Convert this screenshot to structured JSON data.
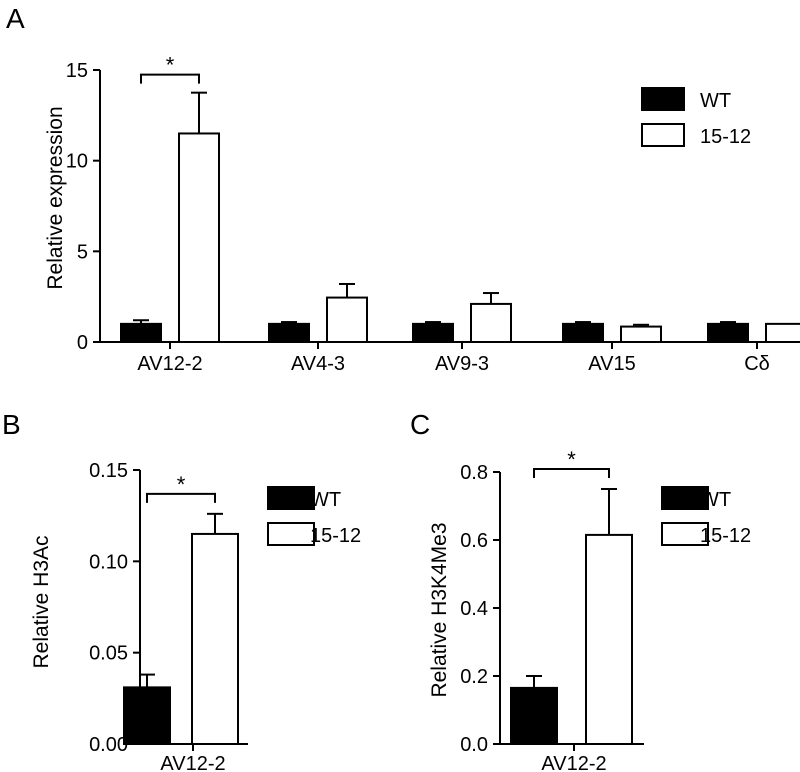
{
  "chart_data": [
    {
      "panel": "A",
      "type": "bar",
      "ylabel": "Relative expression",
      "ylim": [
        0,
        15
      ],
      "yticks": [
        "0",
        "5",
        "10",
        "15"
      ],
      "categories": [
        "AV12-2",
        "AV4-3",
        "AV9-3",
        "AV15",
        "Cδ"
      ],
      "series": [
        {
          "name": "WT",
          "color": "#000000",
          "values": [
            1.0,
            1.0,
            1.0,
            1.0,
            1.0
          ],
          "errors": [
            0.2,
            0.1,
            0.1,
            0.1,
            0.1
          ]
        },
        {
          "name": "15-12",
          "color": "#ffffff",
          "values": [
            11.5,
            2.45,
            2.1,
            0.85,
            1.0
          ],
          "errors": [
            2.25,
            0.75,
            0.6,
            0.1,
            0.0
          ]
        }
      ],
      "significance": [
        {
          "category": "AV12-2",
          "label": "*"
        }
      ],
      "legend": "top-right"
    },
    {
      "panel": "B",
      "type": "bar",
      "ylabel": "Relative H3Ac",
      "ylim": [
        0,
        0.15
      ],
      "yticks": [
        "0.00",
        "0.05",
        "0.10",
        "0.15"
      ],
      "categories": [
        "AV12-2"
      ],
      "series": [
        {
          "name": "WT",
          "color": "#000000",
          "values": [
            0.031
          ],
          "errors": [
            0.007
          ]
        },
        {
          "name": "15-12",
          "color": "#ffffff",
          "values": [
            0.115
          ],
          "errors": [
            0.011
          ]
        }
      ],
      "significance": [
        {
          "category": "AV12-2",
          "label": "*"
        }
      ],
      "legend": "top-right"
    },
    {
      "panel": "C",
      "type": "bar",
      "ylabel": "Relative H3K4Me3",
      "ylim": [
        0,
        0.8
      ],
      "yticks": [
        "0.0",
        "0.2",
        "0.4",
        "0.6",
        "0.8"
      ],
      "categories": [
        "AV12-2"
      ],
      "series": [
        {
          "name": "WT",
          "color": "#000000",
          "values": [
            0.165
          ],
          "errors": [
            0.035
          ]
        },
        {
          "name": "15-12",
          "color": "#ffffff",
          "values": [
            0.615
          ],
          "errors": [
            0.135
          ]
        }
      ],
      "significance": [
        {
          "category": "AV12-2",
          "label": "*"
        }
      ],
      "legend": "top-right"
    }
  ]
}
